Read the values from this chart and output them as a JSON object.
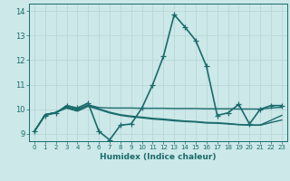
{
  "title": "",
  "xlabel": "Humidex (Indice chaleur)",
  "ylabel": "",
  "background_color": "#cce8e8",
  "grid_color": "#b8d8d8",
  "line_color": "#1a6b6b",
  "xlim": [
    -0.5,
    23.5
  ],
  "ylim": [
    8.7,
    14.3
  ],
  "yticks": [
    9,
    10,
    11,
    12,
    13,
    14
  ],
  "xticks": [
    0,
    1,
    2,
    3,
    4,
    5,
    6,
    7,
    8,
    9,
    10,
    11,
    12,
    13,
    14,
    15,
    16,
    17,
    18,
    19,
    20,
    21,
    22,
    23
  ],
  "series": [
    {
      "x": [
        0,
        1,
        2,
        3,
        4,
        5,
        6,
        7,
        8,
        9,
        10,
        11,
        12,
        13,
        14,
        15,
        16,
        17,
        18,
        19,
        20,
        21,
        22,
        23
      ],
      "y": [
        9.1,
        9.75,
        9.85,
        10.15,
        10.05,
        10.25,
        9.1,
        8.75,
        9.35,
        9.4,
        10.05,
        11.0,
        12.15,
        13.85,
        13.35,
        12.8,
        11.75,
        9.75,
        9.85,
        10.2,
        9.4,
        10.0,
        10.15,
        10.15
      ],
      "marker": "+",
      "linewidth": 1.2,
      "markersize": 4
    },
    {
      "x": [
        0,
        1,
        2,
        3,
        4,
        5,
        6,
        7,
        8,
        9,
        10,
        11,
        12,
        13,
        14,
        15,
        16,
        17,
        18,
        19,
        20,
        21,
        22,
        23
      ],
      "y": [
        9.1,
        9.78,
        9.87,
        10.1,
        10.0,
        10.18,
        10.07,
        10.05,
        10.05,
        10.05,
        10.04,
        10.04,
        10.04,
        10.03,
        10.03,
        10.03,
        10.02,
        10.02,
        10.02,
        10.01,
        10.01,
        10.01,
        10.05,
        10.08
      ],
      "marker": null,
      "linewidth": 1.0,
      "markersize": 0
    },
    {
      "x": [
        0,
        1,
        2,
        3,
        4,
        5,
        6,
        7,
        8,
        9,
        10,
        11,
        12,
        13,
        14,
        15,
        16,
        17,
        18,
        19,
        20,
        21,
        22,
        23
      ],
      "y": [
        9.1,
        9.78,
        9.87,
        10.08,
        9.95,
        10.15,
        10.02,
        9.88,
        9.78,
        9.72,
        9.68,
        9.63,
        9.6,
        9.56,
        9.52,
        9.5,
        9.46,
        9.45,
        9.42,
        9.38,
        9.36,
        9.36,
        9.55,
        9.75
      ],
      "marker": null,
      "linewidth": 1.0,
      "markersize": 0
    },
    {
      "x": [
        0,
        1,
        2,
        3,
        4,
        5,
        6,
        7,
        8,
        9,
        10,
        11,
        12,
        13,
        14,
        15,
        16,
        17,
        18,
        19,
        20,
        21,
        22,
        23
      ],
      "y": [
        9.1,
        9.78,
        9.87,
        10.05,
        9.92,
        10.12,
        9.99,
        9.85,
        9.75,
        9.69,
        9.65,
        9.6,
        9.57,
        9.53,
        9.5,
        9.48,
        9.44,
        9.43,
        9.4,
        9.37,
        9.35,
        9.35,
        9.46,
        9.56
      ],
      "marker": null,
      "linewidth": 1.0,
      "markersize": 0
    }
  ]
}
